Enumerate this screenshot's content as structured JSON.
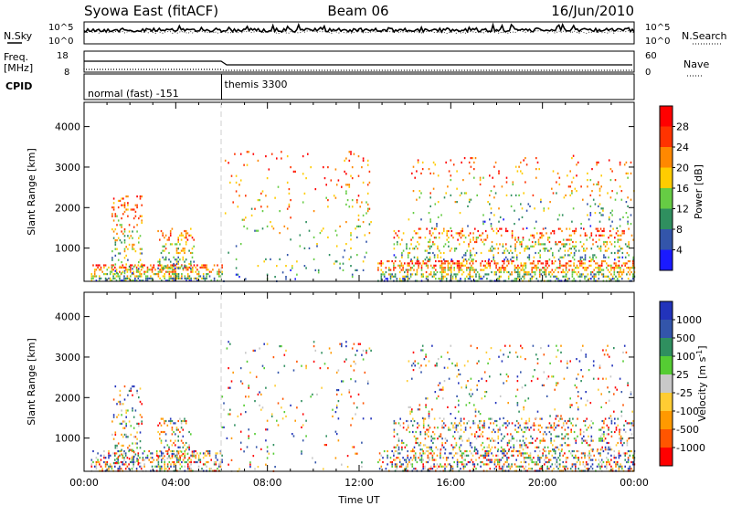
{
  "header": {
    "station": "Syowa East (fitACF)",
    "beam": "Beam 06",
    "date": "16/Jun/2010"
  },
  "status_panels": {
    "nsky_label": "N.Sky",
    "nsky_scale_top": "10^5",
    "nsky_scale_bottom": "10^0",
    "nsearch_label": "N.Search",
    "nsearch_scale_top": "10^5",
    "nsearch_scale_bottom": "10^0",
    "freq_label_line1": "Freq.",
    "freq_label_line2": "[MHz]",
    "freq_scale_top": "18",
    "freq_scale_bottom": "8",
    "nave_label": "Nave",
    "nave_scale_top": "60",
    "nave_scale_bottom": "0",
    "cpid_label": "CPID",
    "cpid_segments": [
      {
        "name": "normal (fast) -151",
        "start_hour": 0,
        "end_hour": 6
      },
      {
        "name": "themis 3300",
        "start_hour": 6,
        "end_hour": 24
      }
    ]
  },
  "colors": {
    "power_scale": [
      "#1a1aff",
      "#3355aa",
      "#2f8f5f",
      "#66cc44",
      "#ffcc00",
      "#ff8800",
      "#ff3300",
      "#ff0000"
    ],
    "velocity_scale": [
      "#ff0000",
      "#ff5500",
      "#ff9900",
      "#ffcc33",
      "#c8c8c8",
      "#55cc33",
      "#2f8f5f",
      "#3355aa",
      "#2233bb"
    ]
  },
  "chart_data": [
    {
      "type": "heatmap",
      "name": "power",
      "ylabel": "Slant Range [km]",
      "xlabel": "",
      "yticks": [
        "1000",
        "2000",
        "3000",
        "4000"
      ],
      "xlim_hours": [
        0,
        24
      ],
      "ylim_km": [
        180,
        4600
      ],
      "colorbar_label": "Power [dB]",
      "colorbar_ticks": [
        "4",
        "8",
        "12",
        "16",
        "20",
        "24",
        "28"
      ],
      "colorbar_range": [
        0,
        32
      ],
      "scatter_regions": [
        {
          "hours": [
            0.3,
            6.0
          ],
          "km": [
            180,
            600
          ],
          "density": 0.45
        },
        {
          "hours": [
            1.2,
            2.5
          ],
          "km": [
            400,
            2300
          ],
          "density": 0.18
        },
        {
          "hours": [
            3.2,
            4.8
          ],
          "km": [
            500,
            1500
          ],
          "density": 0.25
        },
        {
          "hours": [
            6.0,
            11.0
          ],
          "km": [
            180,
            3400
          ],
          "density": 0.03
        },
        {
          "hours": [
            11.0,
            12.5
          ],
          "km": [
            300,
            3400
          ],
          "density": 0.05
        },
        {
          "hours": [
            12.8,
            24.0
          ],
          "km": [
            180,
            700
          ],
          "density": 0.4
        },
        {
          "hours": [
            13.5,
            24.0
          ],
          "km": [
            700,
            1500
          ],
          "density": 0.2
        },
        {
          "hours": [
            14.0,
            24.0
          ],
          "km": [
            1500,
            3300
          ],
          "density": 0.05
        }
      ]
    },
    {
      "type": "heatmap",
      "name": "velocity",
      "ylabel": "Slant Range [km]",
      "xlabel": "Time UT",
      "yticks": [
        "1000",
        "2000",
        "3000",
        "4000"
      ],
      "xticks": [
        "00:00",
        "04:00",
        "08:00",
        "12:00",
        "16:00",
        "20:00",
        "00:00"
      ],
      "xlim_hours": [
        0,
        24
      ],
      "ylim_km": [
        180,
        4600
      ],
      "colorbar_label": "Velocity [m s^-1]",
      "colorbar_ticks": [
        "-1000",
        "-500",
        "-100",
        "-25",
        "25",
        "100",
        "500",
        "1000"
      ],
      "scatter_regions": [
        {
          "hours": [
            0.3,
            6.0
          ],
          "km": [
            180,
            700
          ],
          "density": 0.35
        },
        {
          "hours": [
            1.2,
            2.5
          ],
          "km": [
            400,
            2300
          ],
          "density": 0.15
        },
        {
          "hours": [
            3.2,
            4.8
          ],
          "km": [
            500,
            1500
          ],
          "density": 0.22
        },
        {
          "hours": [
            6.0,
            11.0
          ],
          "km": [
            180,
            3400
          ],
          "density": 0.03
        },
        {
          "hours": [
            11.0,
            12.5
          ],
          "km": [
            300,
            3400
          ],
          "density": 0.05
        },
        {
          "hours": [
            12.8,
            24.0
          ],
          "km": [
            180,
            700
          ],
          "density": 0.35
        },
        {
          "hours": [
            13.5,
            24.0
          ],
          "km": [
            700,
            1500
          ],
          "density": 0.22
        },
        {
          "hours": [
            14.0,
            24.0
          ],
          "km": [
            1500,
            3300
          ],
          "density": 0.05
        }
      ]
    }
  ]
}
